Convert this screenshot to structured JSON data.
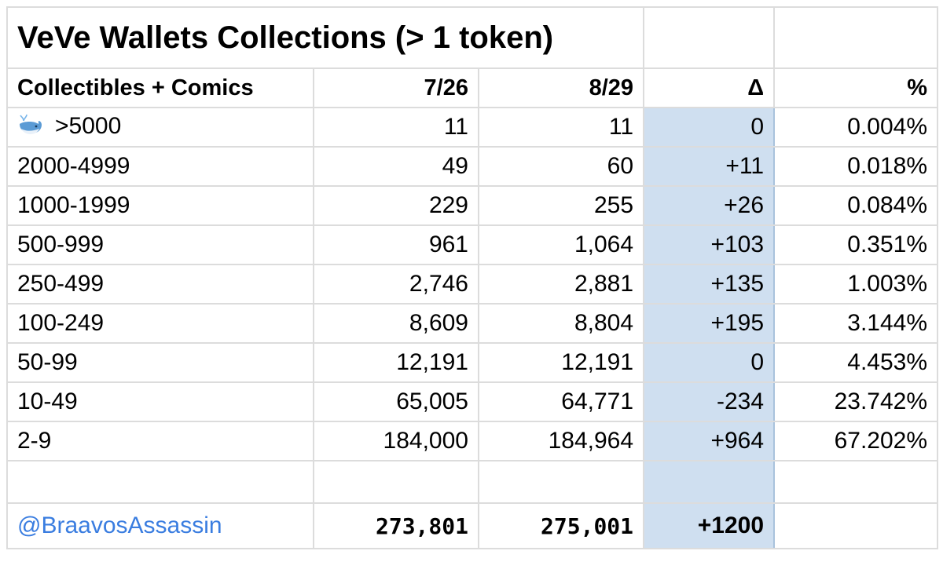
{
  "chart_data": {
    "type": "table",
    "title": "VeVe Wallets Collections (> 1 token)",
    "columns": [
      "Collectibles + Comics",
      "7/26",
      "8/29",
      "Δ",
      "%"
    ],
    "rows": [
      {
        "label": ">5000",
        "icon": "whale-icon",
        "d726": "11",
        "d829": "11",
        "delta": "0",
        "pct": "0.004%"
      },
      {
        "label": "2000-4999",
        "d726": "49",
        "d829": "60",
        "delta": "+11",
        "pct": "0.018%"
      },
      {
        "label": "1000-1999",
        "d726": "229",
        "d829": "255",
        "delta": "+26",
        "pct": "0.084%"
      },
      {
        "label": "500-999",
        "d726": "961",
        "d829": "1,064",
        "delta": "+103",
        "pct": "0.351%"
      },
      {
        "label": "250-499",
        "d726": "2,746",
        "d829": "2,881",
        "delta": "+135",
        "pct": "1.003%"
      },
      {
        "label": "100-249",
        "d726": "8,609",
        "d829": "8,804",
        "delta": "+195",
        "pct": "3.144%"
      },
      {
        "label": "50-99",
        "d726": "12,191",
        "d829": "12,191",
        "delta": "0",
        "pct": "4.453%"
      },
      {
        "label": "10-49",
        "d726": "65,005",
        "d829": "64,771",
        "delta": "-234",
        "pct": "23.742%"
      },
      {
        "label": "2-9",
        "d726": "184,000",
        "d829": "184,964",
        "delta": "+964",
        "pct": "67.202%"
      }
    ],
    "total": {
      "label": "@BraavosAssassin",
      "d726": "273,801",
      "d829": "275,001",
      "delta": "+1200",
      "pct": ""
    },
    "colors": {
      "delta_column": "#cfdff0",
      "handle": "#3a7de0",
      "grid": "#dcdcdc"
    }
  }
}
